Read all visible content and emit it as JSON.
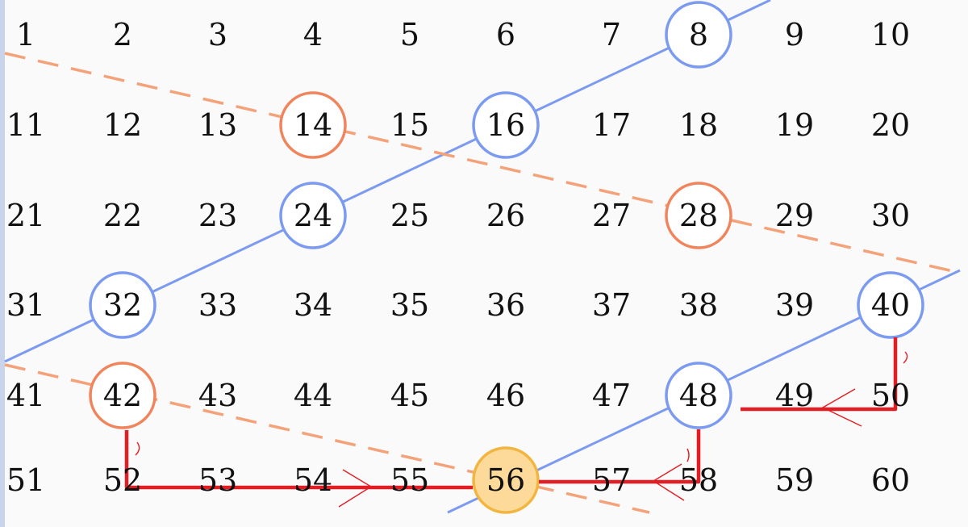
{
  "grid": {
    "rows": [
      [
        "1",
        "2",
        "3",
        "4",
        "5",
        "6",
        "7",
        "8",
        "9",
        "10"
      ],
      [
        "11",
        "12",
        "13",
        "14",
        "15",
        "16",
        "17",
        "18",
        "19",
        "20"
      ],
      [
        "21",
        "22",
        "23",
        "24",
        "25",
        "26",
        "27",
        "28",
        "29",
        "30"
      ],
      [
        "31",
        "32",
        "33",
        "34",
        "35",
        "36",
        "37",
        "38",
        "39",
        "40"
      ],
      [
        "41",
        "42",
        "43",
        "44",
        "45",
        "46",
        "47",
        "48",
        "49",
        "50"
      ],
      [
        "51",
        "52",
        "53",
        "54",
        "55",
        "56",
        "57",
        "58",
        "59",
        "60"
      ]
    ]
  },
  "circled": {
    "blue": [
      "8",
      "16",
      "24",
      "32",
      "40",
      "48"
    ],
    "orange": [
      "14",
      "28",
      "42"
    ],
    "highlighted": "56"
  },
  "colors": {
    "blue_circle": "#7b9af0",
    "blue_line": "#7b9af0",
    "orange_circle": "#f0845c",
    "orange_dash": "#f4a27a",
    "highlight_fill": "#fdd99a",
    "highlight_stroke": "#f2b640",
    "path_red": "#e31d24"
  },
  "annotation": {
    "red_path_corners": [
      "40",
      "50",
      "48",
      "58",
      "56",
      "52",
      "42"
    ]
  }
}
